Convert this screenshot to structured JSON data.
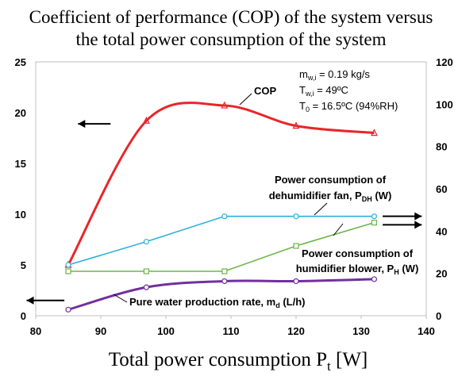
{
  "chart_data": {
    "type": "line",
    "title_line1": "Coefficient of performance (COP) of the system versus",
    "title_line2": "the total power consumption of the system",
    "xlabel_main": "Total power consumption P",
    "xlabel_sub": "t",
    "xlabel_unit": " [W]",
    "xlim": [
      80,
      140
    ],
    "ylim_left": [
      0,
      25
    ],
    "ylim_right": [
      0,
      120
    ],
    "xticks": [
      "80",
      "90",
      "100",
      "110",
      "120",
      "130",
      "140"
    ],
    "yticks_left": [
      "0",
      "5",
      "10",
      "15",
      "20",
      "25"
    ],
    "yticks_right": [
      "0",
      "20",
      "40",
      "60",
      "80",
      "100",
      "120"
    ],
    "conditions": [
      {
        "main": "m",
        "sub": "w,i",
        "rest": " = 0.19 kg/s"
      },
      {
        "main": "T",
        "sub": "w,i",
        "rest": " = 49ºC"
      },
      {
        "main": "T",
        "sub": "0",
        "rest": " = 16.5ºC (94%RH)"
      }
    ],
    "series": [
      {
        "name": "COP",
        "axis": "left",
        "color": "#e8262a",
        "marker": "triangle",
        "smooth": true,
        "x": [
          85,
          97,
          109,
          120,
          132
        ],
        "y": [
          5.0,
          19.2,
          20.7,
          18.7,
          18.0
        ]
      },
      {
        "name": "Power consumption of dehumidifier fan, P_DH (W)",
        "axis": "right",
        "color": "#2eb0dc",
        "marker": "circle",
        "smooth": false,
        "x": [
          85,
          97,
          109,
          120,
          132
        ],
        "y": [
          24,
          35,
          47,
          47,
          47
        ]
      },
      {
        "name": "Power consumption of humidifier blower, P_H (W)",
        "axis": "right",
        "color": "#6fb54b",
        "marker": "square",
        "smooth": false,
        "x": [
          85,
          97,
          109,
          120,
          132
        ],
        "y": [
          21,
          21,
          21,
          33,
          44
        ]
      },
      {
        "name": "Pure water production rate, m_d (L/h)",
        "axis": "left",
        "color": "#7030a0",
        "marker": "circle",
        "smooth": true,
        "x": [
          85,
          97,
          109,
          120,
          132
        ],
        "y": [
          0.6,
          2.8,
          3.4,
          3.4,
          3.6
        ]
      }
    ],
    "labels": {
      "cop": "COP",
      "dh_line1": "Power consumption of",
      "dh_line2_main": "dehumidifier fan, P",
      "dh_line2_sub": "DH",
      "dh_line2_end": " (W)",
      "h_line1": "Power consumption of",
      "h_line2_main": "humidifier blower, P",
      "h_line2_sub": "H",
      "h_line2_end": " (W)",
      "md_main": "Pure water production rate, m",
      "md_sub": "d",
      "md_end": " (L/h)"
    }
  }
}
